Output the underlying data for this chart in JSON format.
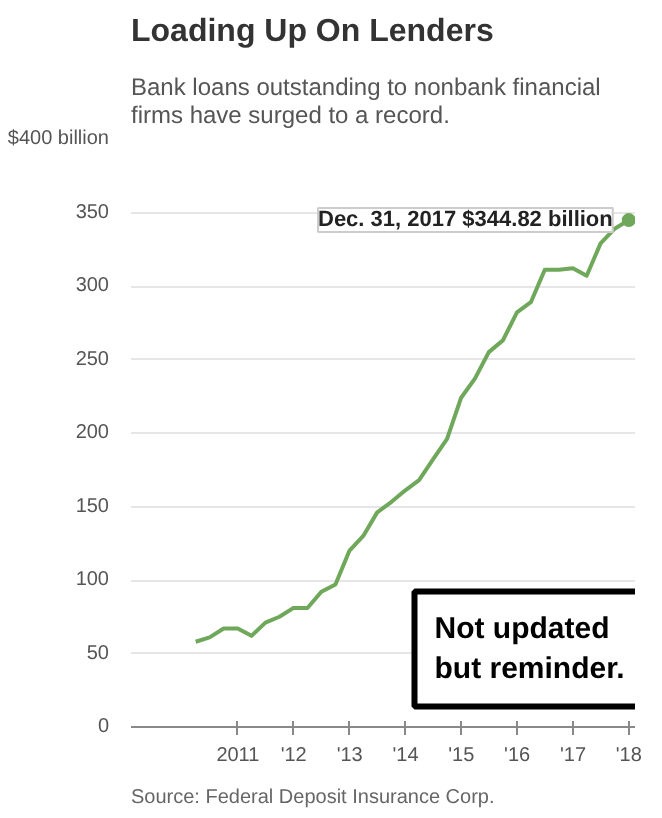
{
  "chart_data": {
    "type": "line",
    "title": "Loading Up On Lenders",
    "subtitle": "Bank loans outstanding to nonbank financial firms have surged to a record.",
    "x": [
      "2010-03-31",
      "2010-06-30",
      "2010-09-30",
      "2010-12-31",
      "2011-03-31",
      "2011-06-30",
      "2011-09-30",
      "2011-12-31",
      "2012-03-31",
      "2012-06-30",
      "2012-09-30",
      "2012-12-31",
      "2013-03-31",
      "2013-06-30",
      "2013-09-30",
      "2013-12-31",
      "2014-03-31",
      "2014-06-30",
      "2014-09-30",
      "2014-12-31",
      "2015-03-31",
      "2015-06-30",
      "2015-09-30",
      "2015-12-31",
      "2016-03-31",
      "2016-06-30",
      "2016-09-30",
      "2016-12-31",
      "2017-03-31",
      "2017-06-30",
      "2017-09-30",
      "2017-12-31"
    ],
    "series": [
      {
        "color": "#6fa85a",
        "values": [
          58,
          61,
          67,
          67,
          62,
          71,
          75,
          81,
          81,
          92,
          97,
          120,
          130,
          146,
          153,
          161,
          168,
          182,
          196,
          224,
          237,
          255,
          263,
          282,
          289,
          311,
          311,
          312,
          307,
          329,
          339,
          344.82
        ]
      }
    ],
    "xlim": [
      "2009-02-01",
      "2018-02-10"
    ],
    "xticks": [
      {
        "value": "2011-01-01",
        "label": "2011"
      },
      {
        "value": "2012-01-01",
        "label": "'12"
      },
      {
        "value": "2013-01-01",
        "label": "'13"
      },
      {
        "value": "2014-01-01",
        "label": "'14"
      },
      {
        "value": "2015-01-01",
        "label": "'15"
      },
      {
        "value": "2016-01-01",
        "label": "'16"
      },
      {
        "value": "2017-01-01",
        "label": "'17"
      },
      {
        "value": "2017-12-31",
        "label": "'18"
      }
    ],
    "ylim": [
      0,
      400
    ],
    "yticks": [
      0,
      50,
      100,
      150,
      200,
      250,
      300,
      350,
      {
        "value": 400,
        "label": "$400 billion"
      }
    ],
    "grid": "y",
    "marker": "none",
    "line_style": "solid",
    "annotations": [
      {
        "text": "Dec. 31, 2017 $344.82 billion",
        "x": "2017-12-31",
        "y": 344.82
      },
      "Not updated but reminder.",
      "Source: Federal Deposit Insurance Corp."
    ]
  }
}
